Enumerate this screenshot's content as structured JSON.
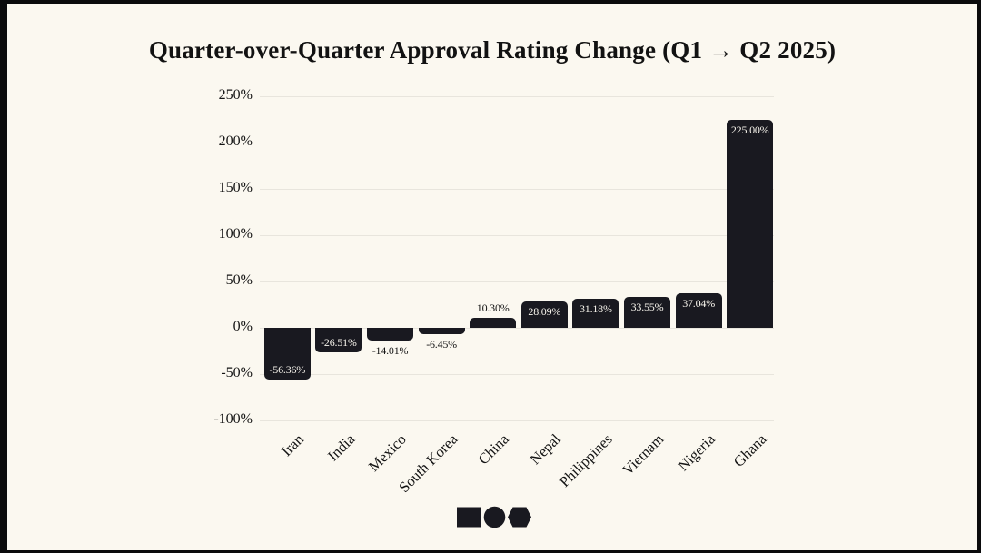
{
  "frame": {
    "border_color": "#0b0b0c",
    "background_color": "#fbf8f0"
  },
  "chart_data": {
    "type": "bar",
    "title": "Quarter-over-Quarter Approval Rating Change (Q1 → Q2 2025)",
    "xlabel": "",
    "ylabel": "",
    "categories": [
      "Iran",
      "India",
      "Mexico",
      "South Korea",
      "China",
      "Nepal",
      "Philippines",
      "Vietnam",
      "Nigeria",
      "Ghana"
    ],
    "values": [
      -56.36,
      -26.51,
      -14.01,
      -6.45,
      10.3,
      28.09,
      31.18,
      33.55,
      37.04,
      225.0
    ],
    "value_labels": [
      "-56.36%",
      "-26.51%",
      "-14.01%",
      "-6.45%",
      "10.30%",
      "28.09%",
      "31.18%",
      "33.55%",
      "37.04%",
      "225.00%"
    ],
    "ylim": [
      -100,
      250
    ],
    "yticks": [
      250,
      200,
      150,
      100,
      50,
      0,
      -50,
      -100
    ],
    "ytick_labels": [
      "250%",
      "200%",
      "150%",
      "100%",
      "50%",
      "0%",
      "-50%",
      "-100%"
    ],
    "grid": true,
    "legend": false,
    "bar_color": "#191920",
    "gridline_color": "#e8e5dd",
    "label_color_inside": "#f7f4ec",
    "label_color_outside": "#141414"
  },
  "logo": {
    "shapes": [
      "square",
      "circle",
      "hexagon"
    ],
    "color": "#191920"
  }
}
